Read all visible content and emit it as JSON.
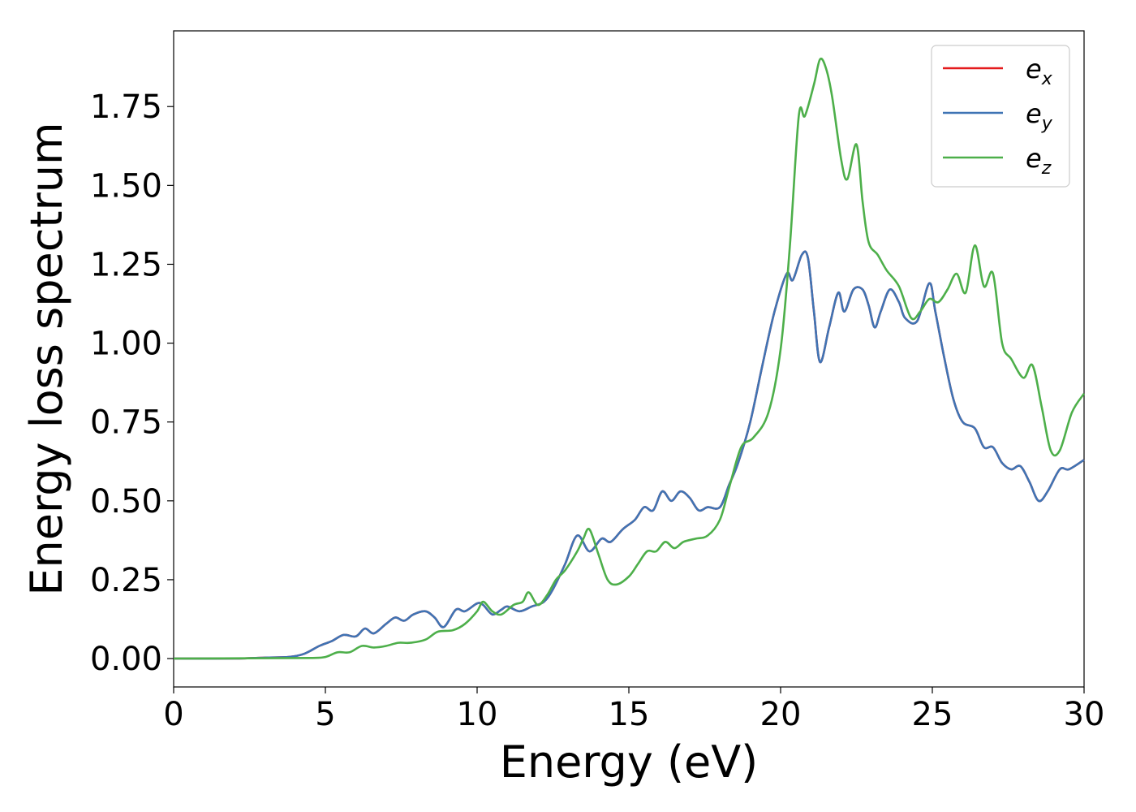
{
  "chart_data": {
    "type": "line",
    "xlabel": "Energy (eV)",
    "ylabel": "Energy loss spectrum",
    "xlim": [
      0,
      30
    ],
    "ylim": [
      -0.09,
      1.99
    ],
    "xticks": [
      0,
      5,
      10,
      15,
      20,
      25,
      30
    ],
    "xtick_labels": [
      "0",
      "5",
      "10",
      "15",
      "20",
      "25",
      "30"
    ],
    "yticks": [
      0,
      0.25,
      0.5,
      0.75,
      1.0,
      1.25,
      1.5,
      1.75
    ],
    "ytick_labels": [
      "0.00",
      "0.25",
      "0.50",
      "0.75",
      "1.00",
      "1.25",
      "1.50",
      "1.75"
    ],
    "grid": false,
    "legend_position": "top-right",
    "series": [
      {
        "name": "e",
        "subscript": "x",
        "color": "#e41a1c",
        "points": [
          [
            0,
            0
          ],
          [
            2,
            0
          ],
          [
            3,
            0.003
          ],
          [
            3.8,
            0.005
          ],
          [
            4.3,
            0.015
          ],
          [
            4.8,
            0.04
          ],
          [
            5.2,
            0.055
          ],
          [
            5.6,
            0.075
          ],
          [
            6,
            0.07
          ],
          [
            6.3,
            0.095
          ],
          [
            6.6,
            0.08
          ],
          [
            7,
            0.11
          ],
          [
            7.3,
            0.13
          ],
          [
            7.6,
            0.12
          ],
          [
            7.9,
            0.14
          ],
          [
            8.3,
            0.15
          ],
          [
            8.6,
            0.13
          ],
          [
            8.9,
            0.1
          ],
          [
            9.3,
            0.155
          ],
          [
            9.6,
            0.15
          ],
          [
            10,
            0.175
          ],
          [
            10.2,
            0.17
          ],
          [
            10.5,
            0.14
          ],
          [
            10.8,
            0.155
          ],
          [
            11,
            0.165
          ],
          [
            11.4,
            0.15
          ],
          [
            11.8,
            0.165
          ],
          [
            12.2,
            0.18
          ],
          [
            12.5,
            0.22
          ],
          [
            12.9,
            0.3
          ],
          [
            13.3,
            0.39
          ],
          [
            13.7,
            0.34
          ],
          [
            14.1,
            0.38
          ],
          [
            14.4,
            0.37
          ],
          [
            14.8,
            0.41
          ],
          [
            15.2,
            0.44
          ],
          [
            15.5,
            0.48
          ],
          [
            15.8,
            0.47
          ],
          [
            16.1,
            0.53
          ],
          [
            16.4,
            0.5
          ],
          [
            16.7,
            0.53
          ],
          [
            17,
            0.51
          ],
          [
            17.3,
            0.47
          ],
          [
            17.6,
            0.48
          ],
          [
            18,
            0.48
          ],
          [
            18.3,
            0.55
          ],
          [
            18.6,
            0.62
          ],
          [
            19,
            0.75
          ],
          [
            19.4,
            0.93
          ],
          [
            19.8,
            1.1
          ],
          [
            20.2,
            1.22
          ],
          [
            20.4,
            1.2
          ],
          [
            20.7,
            1.28
          ],
          [
            20.9,
            1.27
          ],
          [
            21.1,
            1.1
          ],
          [
            21.3,
            0.94
          ],
          [
            21.6,
            1.05
          ],
          [
            21.9,
            1.16
          ],
          [
            22.1,
            1.1
          ],
          [
            22.4,
            1.17
          ],
          [
            22.7,
            1.17
          ],
          [
            22.9,
            1.12
          ],
          [
            23.1,
            1.05
          ],
          [
            23.3,
            1.1
          ],
          [
            23.6,
            1.17
          ],
          [
            23.9,
            1.13
          ],
          [
            24.1,
            1.08
          ],
          [
            24.5,
            1.07
          ],
          [
            24.9,
            1.19
          ],
          [
            25.1,
            1.1
          ],
          [
            25.4,
            0.95
          ],
          [
            25.7,
            0.82
          ],
          [
            26,
            0.75
          ],
          [
            26.4,
            0.73
          ],
          [
            26.7,
            0.67
          ],
          [
            27,
            0.67
          ],
          [
            27.3,
            0.62
          ],
          [
            27.6,
            0.6
          ],
          [
            27.9,
            0.61
          ],
          [
            28.2,
            0.56
          ],
          [
            28.5,
            0.5
          ],
          [
            28.8,
            0.53
          ],
          [
            29.2,
            0.6
          ],
          [
            29.5,
            0.6
          ],
          [
            30,
            0.63
          ]
        ]
      },
      {
        "name": "e",
        "subscript": "y",
        "color": "#3f74b4",
        "points": [
          [
            0,
            0
          ],
          [
            2,
            0
          ],
          [
            3,
            0.003
          ],
          [
            3.8,
            0.005
          ],
          [
            4.3,
            0.015
          ],
          [
            4.8,
            0.04
          ],
          [
            5.2,
            0.055
          ],
          [
            5.6,
            0.075
          ],
          [
            6,
            0.07
          ],
          [
            6.3,
            0.095
          ],
          [
            6.6,
            0.08
          ],
          [
            7,
            0.11
          ],
          [
            7.3,
            0.13
          ],
          [
            7.6,
            0.12
          ],
          [
            7.9,
            0.14
          ],
          [
            8.3,
            0.15
          ],
          [
            8.6,
            0.13
          ],
          [
            8.9,
            0.1
          ],
          [
            9.3,
            0.155
          ],
          [
            9.6,
            0.15
          ],
          [
            10,
            0.175
          ],
          [
            10.2,
            0.17
          ],
          [
            10.5,
            0.14
          ],
          [
            10.8,
            0.155
          ],
          [
            11,
            0.165
          ],
          [
            11.4,
            0.15
          ],
          [
            11.8,
            0.165
          ],
          [
            12.2,
            0.18
          ],
          [
            12.5,
            0.22
          ],
          [
            12.9,
            0.3
          ],
          [
            13.3,
            0.39
          ],
          [
            13.7,
            0.34
          ],
          [
            14.1,
            0.38
          ],
          [
            14.4,
            0.37
          ],
          [
            14.8,
            0.41
          ],
          [
            15.2,
            0.44
          ],
          [
            15.5,
            0.48
          ],
          [
            15.8,
            0.47
          ],
          [
            16.1,
            0.53
          ],
          [
            16.4,
            0.5
          ],
          [
            16.7,
            0.53
          ],
          [
            17,
            0.51
          ],
          [
            17.3,
            0.47
          ],
          [
            17.6,
            0.48
          ],
          [
            18,
            0.48
          ],
          [
            18.3,
            0.55
          ],
          [
            18.6,
            0.62
          ],
          [
            19,
            0.75
          ],
          [
            19.4,
            0.93
          ],
          [
            19.8,
            1.1
          ],
          [
            20.2,
            1.22
          ],
          [
            20.4,
            1.2
          ],
          [
            20.7,
            1.28
          ],
          [
            20.9,
            1.27
          ],
          [
            21.1,
            1.1
          ],
          [
            21.3,
            0.94
          ],
          [
            21.6,
            1.05
          ],
          [
            21.9,
            1.16
          ],
          [
            22.1,
            1.1
          ],
          [
            22.4,
            1.17
          ],
          [
            22.7,
            1.17
          ],
          [
            22.9,
            1.12
          ],
          [
            23.1,
            1.05
          ],
          [
            23.3,
            1.1
          ],
          [
            23.6,
            1.17
          ],
          [
            23.9,
            1.13
          ],
          [
            24.1,
            1.08
          ],
          [
            24.5,
            1.07
          ],
          [
            24.9,
            1.19
          ],
          [
            25.1,
            1.1
          ],
          [
            25.4,
            0.95
          ],
          [
            25.7,
            0.82
          ],
          [
            26,
            0.75
          ],
          [
            26.4,
            0.73
          ],
          [
            26.7,
            0.67
          ],
          [
            27,
            0.67
          ],
          [
            27.3,
            0.62
          ],
          [
            27.6,
            0.6
          ],
          [
            27.9,
            0.61
          ],
          [
            28.2,
            0.56
          ],
          [
            28.5,
            0.5
          ],
          [
            28.8,
            0.53
          ],
          [
            29.2,
            0.6
          ],
          [
            29.5,
            0.6
          ],
          [
            30,
            0.63
          ]
        ]
      },
      {
        "name": "e",
        "subscript": "z",
        "color": "#4daf4a",
        "points": [
          [
            0,
            0
          ],
          [
            3,
            0.001
          ],
          [
            4.5,
            0.002
          ],
          [
            5,
            0.005
          ],
          [
            5.4,
            0.02
          ],
          [
            5.8,
            0.02
          ],
          [
            6.2,
            0.04
          ],
          [
            6.6,
            0.035
          ],
          [
            7,
            0.04
          ],
          [
            7.4,
            0.05
          ],
          [
            7.8,
            0.05
          ],
          [
            8.3,
            0.06
          ],
          [
            8.7,
            0.085
          ],
          [
            9.2,
            0.09
          ],
          [
            9.6,
            0.11
          ],
          [
            10,
            0.15
          ],
          [
            10.2,
            0.18
          ],
          [
            10.5,
            0.15
          ],
          [
            10.8,
            0.14
          ],
          [
            11.2,
            0.17
          ],
          [
            11.5,
            0.18
          ],
          [
            11.7,
            0.21
          ],
          [
            12,
            0.17
          ],
          [
            12.3,
            0.2
          ],
          [
            12.6,
            0.25
          ],
          [
            12.9,
            0.28
          ],
          [
            13.3,
            0.34
          ],
          [
            13.5,
            0.38
          ],
          [
            13.7,
            0.41
          ],
          [
            14,
            0.33
          ],
          [
            14.3,
            0.25
          ],
          [
            14.6,
            0.235
          ],
          [
            15,
            0.26
          ],
          [
            15.3,
            0.3
          ],
          [
            15.6,
            0.34
          ],
          [
            15.9,
            0.34
          ],
          [
            16.2,
            0.37
          ],
          [
            16.5,
            0.35
          ],
          [
            16.8,
            0.37
          ],
          [
            17.2,
            0.38
          ],
          [
            17.6,
            0.39
          ],
          [
            18,
            0.44
          ],
          [
            18.3,
            0.54
          ],
          [
            18.7,
            0.67
          ],
          [
            19.1,
            0.7
          ],
          [
            19.6,
            0.78
          ],
          [
            20,
            0.98
          ],
          [
            20.3,
            1.3
          ],
          [
            20.6,
            1.72
          ],
          [
            20.8,
            1.72
          ],
          [
            21.1,
            1.82
          ],
          [
            21.3,
            1.9
          ],
          [
            21.5,
            1.87
          ],
          [
            21.7,
            1.78
          ],
          [
            22,
            1.58
          ],
          [
            22.2,
            1.52
          ],
          [
            22.5,
            1.63
          ],
          [
            22.7,
            1.45
          ],
          [
            22.9,
            1.32
          ],
          [
            23.2,
            1.28
          ],
          [
            23.5,
            1.23
          ],
          [
            23.9,
            1.18
          ],
          [
            24.3,
            1.08
          ],
          [
            24.6,
            1.1
          ],
          [
            24.9,
            1.14
          ],
          [
            25.2,
            1.13
          ],
          [
            25.5,
            1.17
          ],
          [
            25.8,
            1.22
          ],
          [
            26.1,
            1.16
          ],
          [
            26.4,
            1.31
          ],
          [
            26.7,
            1.18
          ],
          [
            27,
            1.22
          ],
          [
            27.3,
            1.0
          ],
          [
            27.6,
            0.95
          ],
          [
            28,
            0.89
          ],
          [
            28.3,
            0.93
          ],
          [
            28.6,
            0.8
          ],
          [
            28.9,
            0.66
          ],
          [
            29.2,
            0.66
          ],
          [
            29.6,
            0.78
          ],
          [
            30,
            0.84
          ]
        ]
      }
    ]
  }
}
